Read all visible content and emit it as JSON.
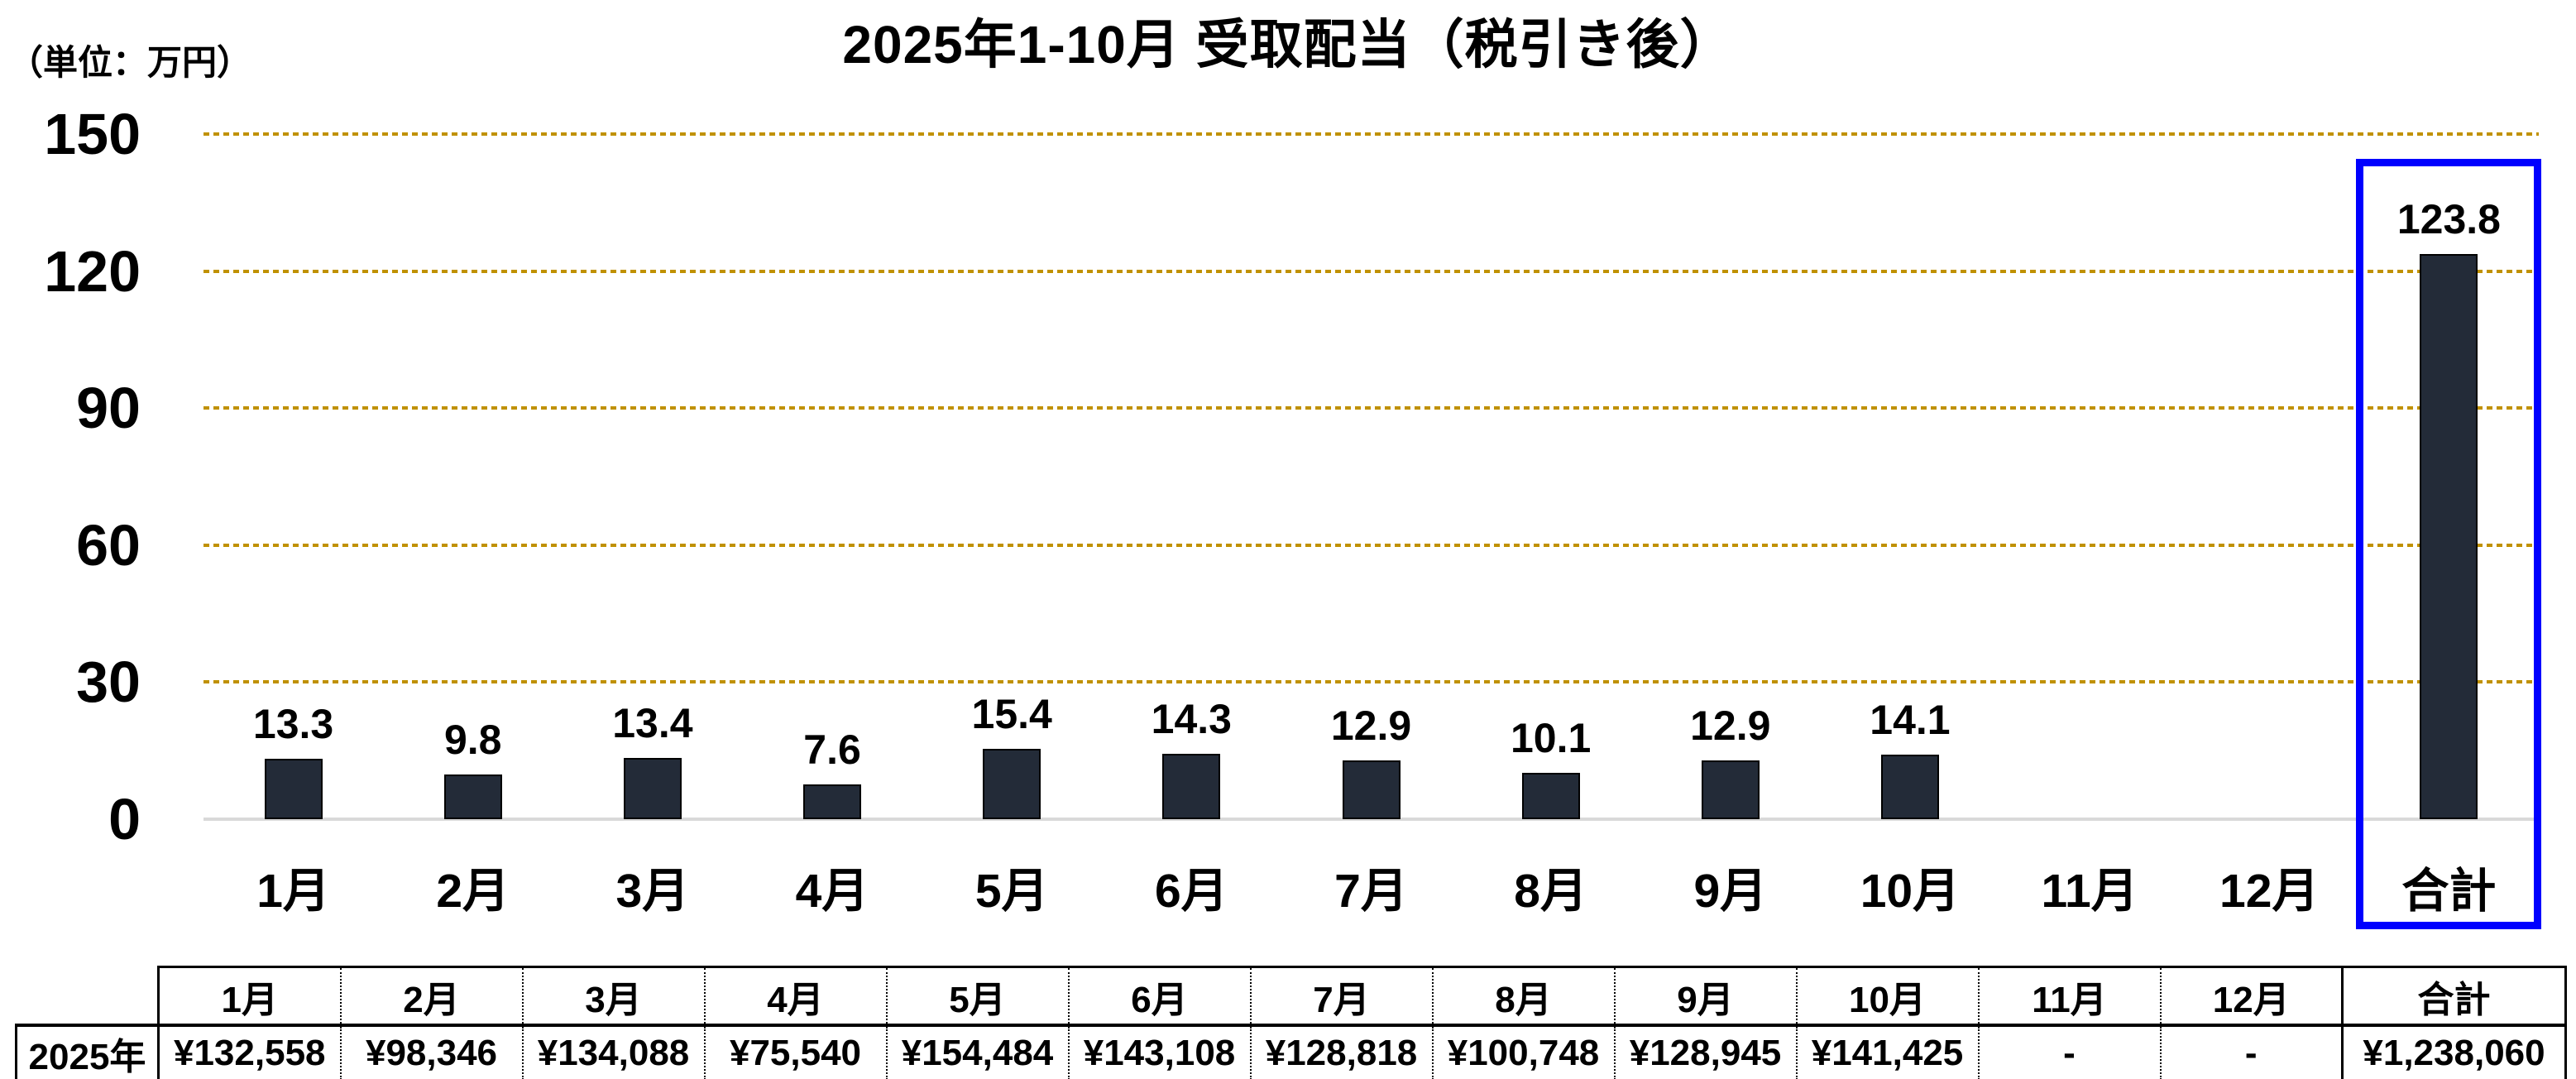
{
  "title": "2025年1-10月 受取配当（税引き後）",
  "unit_label": "（単位：万円）",
  "colors": {
    "bar_fill": "#232b38",
    "bar_border": "#000000",
    "gridline": "#c09100",
    "axis_line": "#d9d9d9",
    "highlight_box": "#0000ff",
    "text": "#000000",
    "table_border": "#000000"
  },
  "chart_data": {
    "type": "bar",
    "title": "2025年1-10月 受取配当（税引き後）",
    "unit": "万円",
    "categories": [
      "1月",
      "2月",
      "3月",
      "4月",
      "5月",
      "6月",
      "7月",
      "8月",
      "9月",
      "10月",
      "11月",
      "12月",
      "合計"
    ],
    "values": [
      13.3,
      9.8,
      13.4,
      7.6,
      15.4,
      14.3,
      12.9,
      10.1,
      12.9,
      14.1,
      null,
      null,
      123.8
    ],
    "bar_labels": [
      "13.3",
      "9.8",
      "13.4",
      "7.6",
      "15.4",
      "14.3",
      "12.9",
      "10.1",
      "12.9",
      "14.1",
      null,
      null,
      "123.8"
    ],
    "ylim": [
      0,
      150
    ],
    "yticks": [
      0,
      30,
      60,
      90,
      120,
      150
    ],
    "grid": "horizontal-dotted",
    "legend": "none",
    "highlighted_category": "合計"
  },
  "table": {
    "row_header": "2025年",
    "column_headers": [
      "1月",
      "2月",
      "3月",
      "4月",
      "5月",
      "6月",
      "7月",
      "8月",
      "9月",
      "10月",
      "11月",
      "12月",
      "合計"
    ],
    "values": [
      "¥132,558",
      "¥98,346",
      "¥134,088",
      "¥75,540",
      "¥154,484",
      "¥143,108",
      "¥128,818",
      "¥100,748",
      "¥128,945",
      "¥141,425",
      "-",
      "-",
      "¥1,238,060"
    ]
  }
}
